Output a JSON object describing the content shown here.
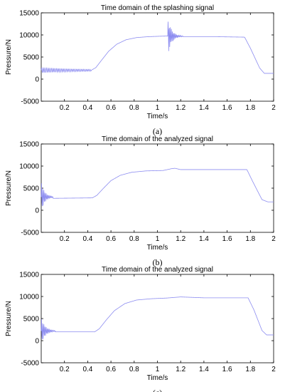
{
  "chart_data": [
    {
      "type": "line",
      "title": "Time domain of the splashing signal",
      "xlabel": "Time/s",
      "ylabel": "Pressure/N",
      "caption": "(a)",
      "xlim": [
        0,
        2
      ],
      "ylim": [
        -5000,
        15000
      ],
      "xticks": [
        "0.2",
        "0.4",
        "0.6",
        "0.8",
        "1",
        "1.2",
        "1.4",
        "1.6",
        "1.8",
        "2"
      ],
      "yticks": [
        "-5000",
        "0",
        "5000",
        "10000",
        "15000"
      ],
      "grid": false,
      "line_color": "#8c8cf0",
      "x": [
        0.0,
        0.43,
        0.47,
        0.52,
        0.58,
        0.65,
        0.73,
        0.82,
        0.92,
        1.02,
        1.09,
        1.11,
        1.13,
        1.15,
        1.3,
        1.5,
        1.75,
        1.8,
        1.88,
        1.92,
        2.0
      ],
      "y": [
        2100,
        2000,
        2600,
        4300,
        6300,
        7900,
        8900,
        9400,
        9600,
        9700,
        9750,
        9600,
        9600,
        9600,
        9600,
        9600,
        9500,
        7000,
        2500,
        1300,
        1300
      ],
      "oscillations": [
        {
          "from": 0.0,
          "to": 0.43,
          "center": 2000,
          "amplitude": 600,
          "cycles": 30,
          "decay": 1
        },
        {
          "from": 1.09,
          "to": 1.22,
          "center": 9700,
          "amplitude": 4200,
          "cycles": 14,
          "decay": 0.25
        }
      ]
    },
    {
      "type": "line",
      "title": "Time domain of the analyzed signal",
      "xlabel": "Time/s",
      "ylabel": "Pressure/N",
      "caption": "(b)",
      "xlim": [
        0,
        2
      ],
      "ylim": [
        -5000,
        15000
      ],
      "xticks": [
        "0.2",
        "0.4",
        "0.6",
        "0.8",
        "1",
        "1.2",
        "1.4",
        "1.6",
        "1.8",
        "2"
      ],
      "yticks": [
        "-5000",
        "0",
        "5000",
        "10000",
        "15000"
      ],
      "grid": false,
      "line_color": "#8c8cf0",
      "x": [
        0.0,
        0.1,
        0.44,
        0.48,
        0.54,
        0.6,
        0.68,
        0.78,
        0.9,
        1.05,
        1.12,
        1.15,
        1.2,
        1.4,
        1.77,
        1.82,
        1.9,
        1.95,
        2.0
      ],
      "y": [
        2600,
        2700,
        2800,
        3400,
        5100,
        6700,
        7900,
        8600,
        8900,
        9000,
        9400,
        9500,
        9200,
        9200,
        9200,
        6500,
        2400,
        1900,
        1900
      ],
      "oscillations": [
        {
          "from": 0.0,
          "to": 0.1,
          "center": 3000,
          "amplitude": 3500,
          "cycles": 10,
          "decay": 0.3
        }
      ]
    },
    {
      "type": "line",
      "title": "Time domain of the analyzed signal",
      "xlabel": "Time/s",
      "ylabel": "Pressure/N",
      "caption": "(c)",
      "xlim": [
        0,
        2
      ],
      "ylim": [
        -5000,
        15000
      ],
      "xticks": [
        "0.2",
        "0.4",
        "0.6",
        "0.8",
        "1",
        "1.2",
        "1.4",
        "1.6",
        "1.8",
        "2"
      ],
      "yticks": [
        "-5000",
        "0",
        "5000",
        "10000",
        "15000"
      ],
      "grid": false,
      "line_color": "#8c8cf0",
      "x": [
        0.0,
        0.12,
        0.46,
        0.5,
        0.56,
        0.63,
        0.72,
        0.82,
        0.95,
        1.08,
        1.2,
        1.4,
        1.78,
        1.83,
        1.9,
        1.94,
        2.0
      ],
      "y": [
        2000,
        2000,
        2000,
        2700,
        4700,
        6800,
        8400,
        9200,
        9500,
        9650,
        9900,
        9700,
        9700,
        7000,
        2300,
        1300,
        1300
      ],
      "oscillations": [
        {
          "from": 0.0,
          "to": 0.12,
          "center": 2200,
          "amplitude": 3000,
          "cycles": 12,
          "decay": 0.3
        }
      ]
    }
  ]
}
